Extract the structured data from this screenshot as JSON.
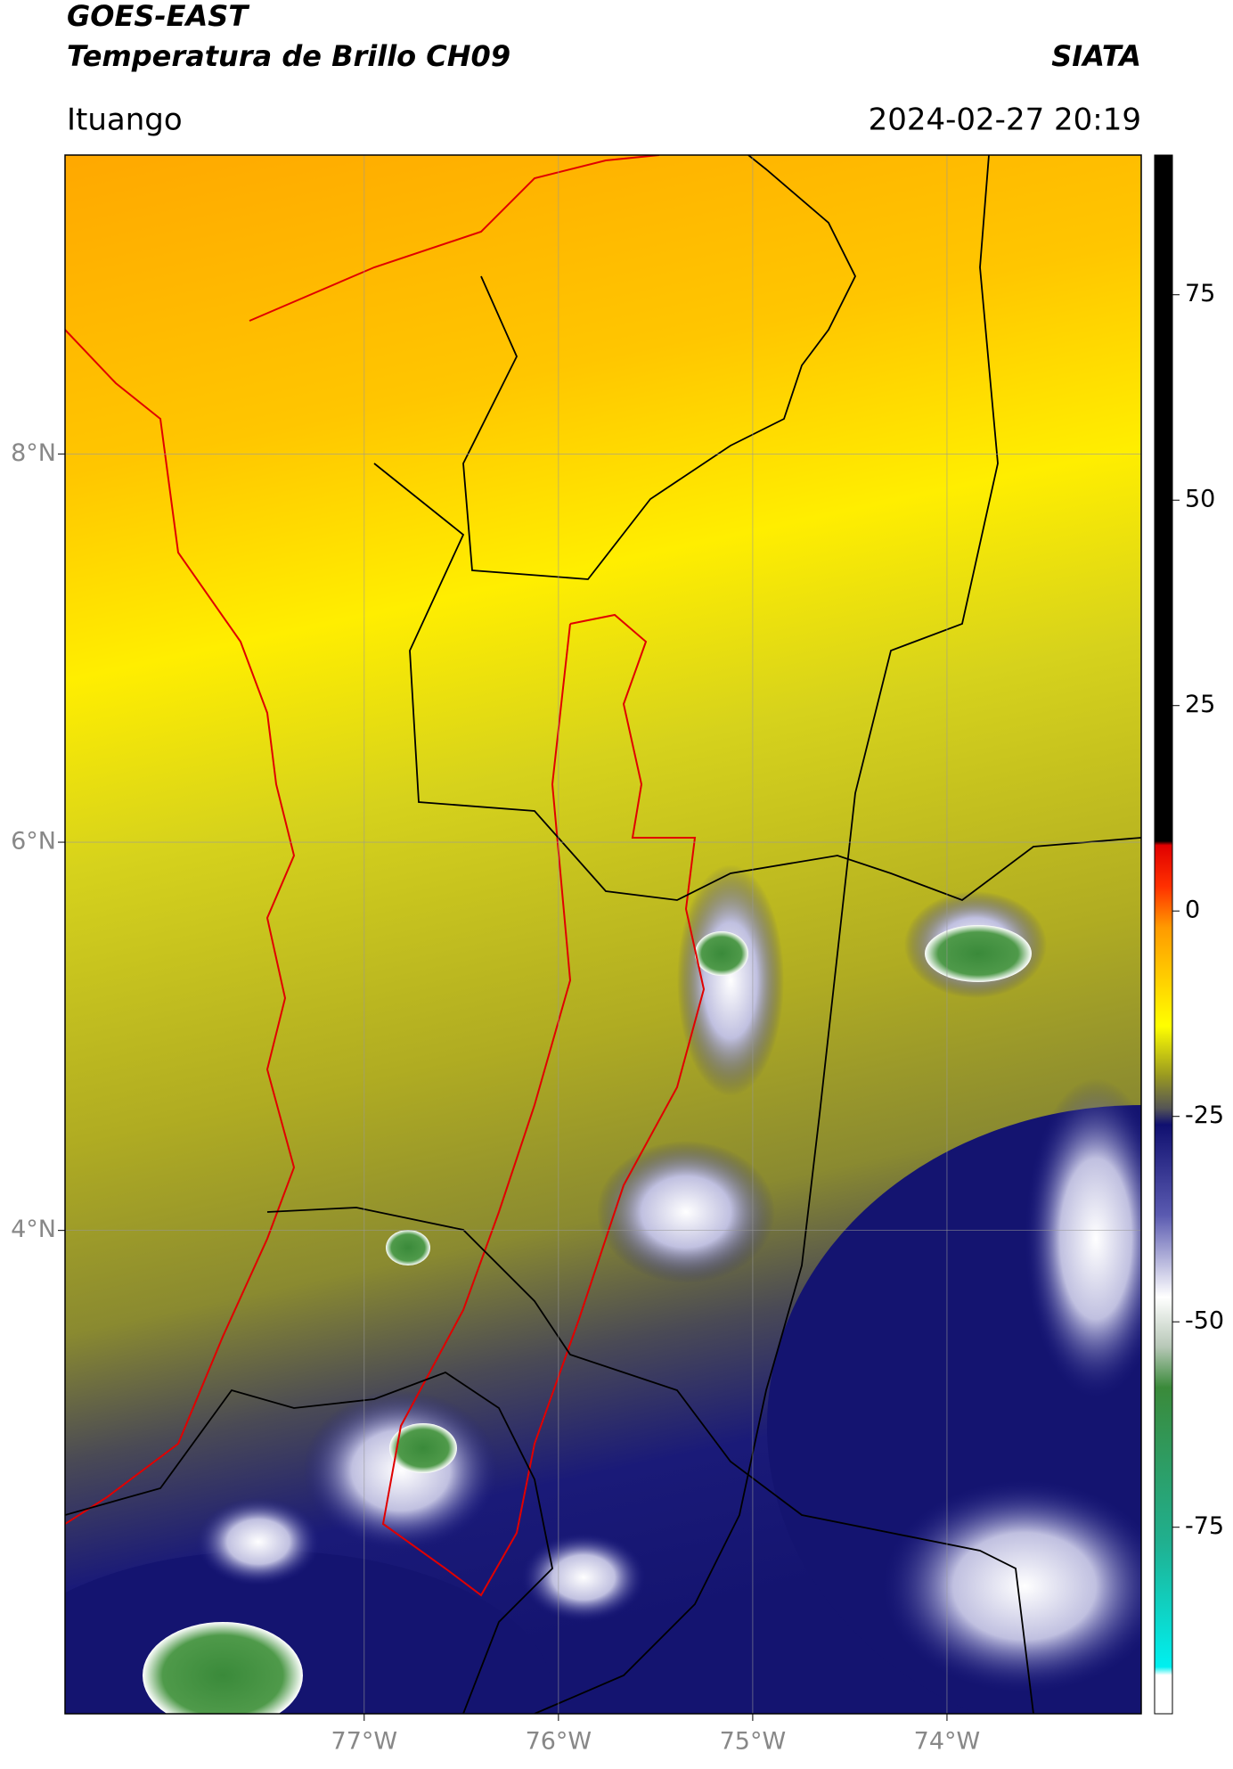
{
  "header": {
    "title": "GOES-EAST",
    "subtitle": "Temperatura de Brillo CH09",
    "brand": "SIATA",
    "region": "Ituango",
    "datetime": "2024-02-27 20:19"
  },
  "map": {
    "lonlim": [
      -78.54,
      -73.0
    ],
    "latlim": [
      1.51,
      9.54
    ],
    "lonticks": [
      {
        "value": -77,
        "label": "77°W"
      },
      {
        "value": -76,
        "label": "76°W"
      },
      {
        "value": -75,
        "label": "75°W"
      },
      {
        "value": -74,
        "label": "74°W"
      }
    ],
    "latticks": [
      {
        "value": 8,
        "label": "8°N"
      },
      {
        "value": 6,
        "label": "6°N"
      },
      {
        "value": 4,
        "label": "4°N"
      }
    ],
    "grid": true
  },
  "colorbar": {
    "lim": [
      -97.7,
      92
    ],
    "ticks": [
      75,
      50,
      25,
      0,
      -25,
      -50,
      -75
    ],
    "stops": [
      [
        92,
        "#000000"
      ],
      [
        8.5,
        "#000000"
      ],
      [
        8,
        "#e00000"
      ],
      [
        3,
        "#ff3000"
      ],
      [
        -2,
        "#ff9a00"
      ],
      [
        -14,
        "#ffff00"
      ],
      [
        -20,
        "#9a9a20"
      ],
      [
        -24,
        "#555555"
      ],
      [
        -26,
        "#101070"
      ],
      [
        -37,
        "#5a5ab0"
      ],
      [
        -47,
        "#ffffff"
      ],
      [
        -53,
        "#b8c8b8"
      ],
      [
        -58,
        "#3a8a3a"
      ],
      [
        -77,
        "#20b090"
      ],
      [
        -92,
        "#00f0f0"
      ],
      [
        -93,
        "#ffffff"
      ],
      [
        -97.7,
        "#ffffff"
      ]
    ]
  }
}
